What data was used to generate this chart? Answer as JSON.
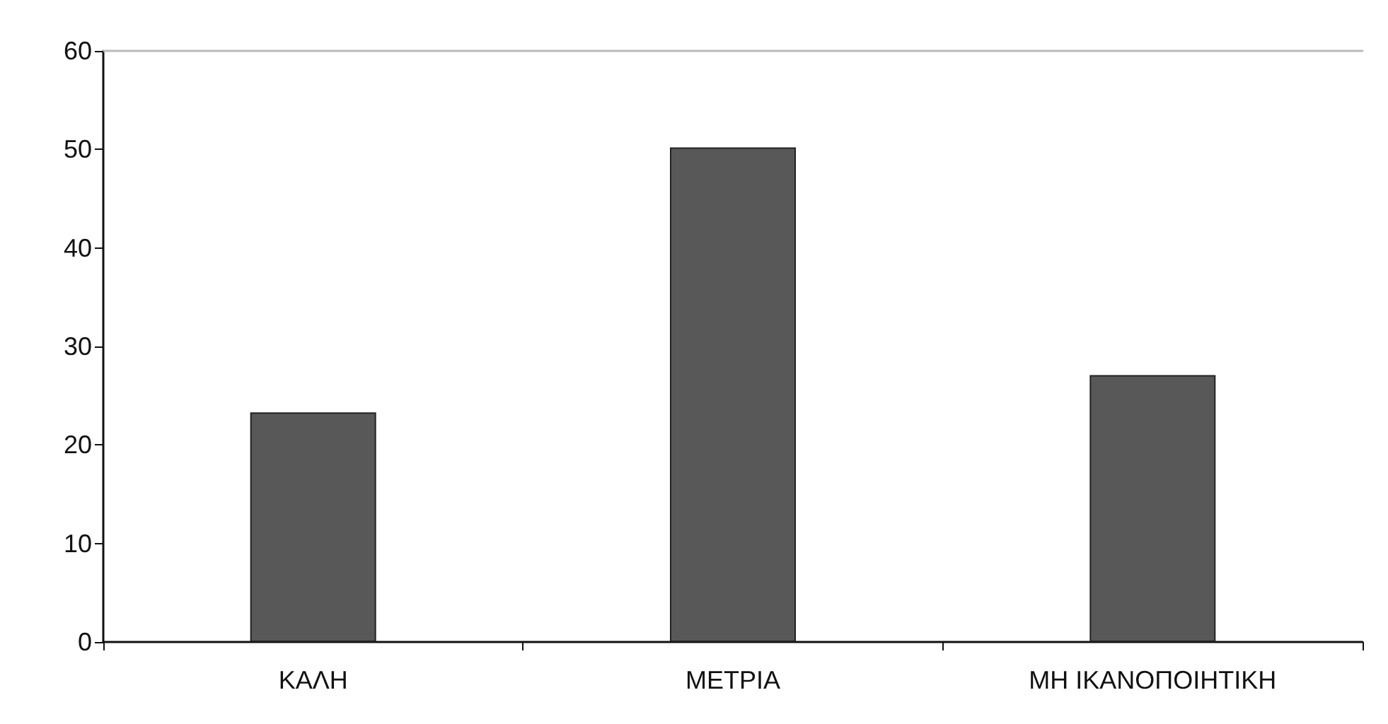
{
  "chart_data": {
    "type": "bar",
    "categories": [
      "ΚΑΛΗ",
      "ΜΕΤΡΙΑ",
      "ΜΗ ΙΚΑΝΟΠΟΙΗΤΙΚΗ"
    ],
    "series": [
      {
        "color": "#585858",
        "values": [
          23.3,
          50.2,
          27.1
        ]
      }
    ],
    "ylim": [
      0,
      60
    ],
    "yticks": [
      0,
      10,
      20,
      30,
      40,
      50,
      60
    ],
    "grid": false
  }
}
